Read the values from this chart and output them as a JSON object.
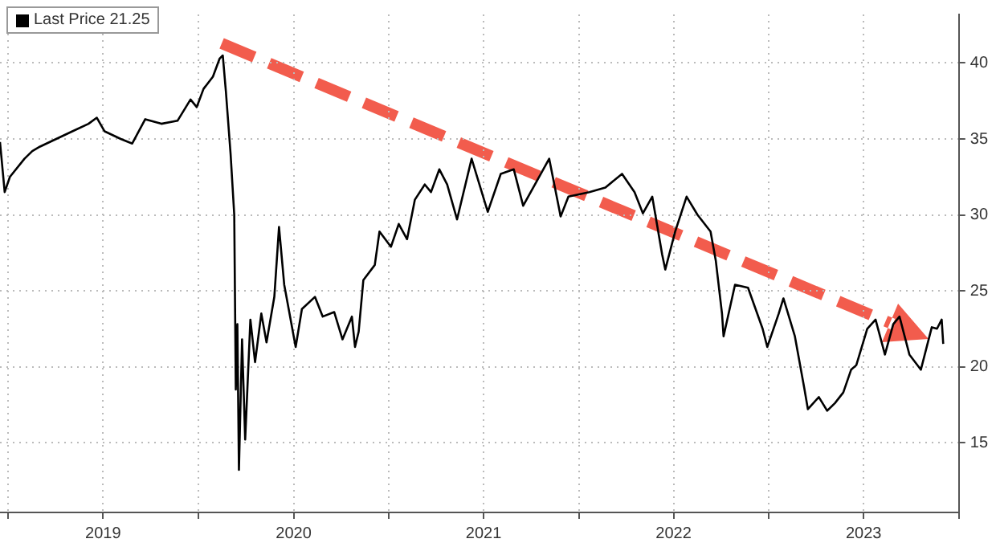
{
  "chart_data": {
    "type": "line",
    "legend": "top left",
    "grid": true,
    "marker": "none",
    "line_style": "solid",
    "xlim": [
      "2018-12-16",
      "2024-01-01"
    ],
    "ylim": [
      10.4,
      43.2
    ],
    "xticks": [
      {
        "value": "2019-01-01",
        "label": null
      },
      {
        "value": "2019-07-02",
        "label": "2019"
      },
      {
        "value": "2020-01-01",
        "label": null
      },
      {
        "value": "2020-07-02",
        "label": "2020"
      },
      {
        "value": "2021-01-01",
        "label": null
      },
      {
        "value": "2021-07-02",
        "label": "2021"
      },
      {
        "value": "2022-01-01",
        "label": null
      },
      {
        "value": "2022-07-02",
        "label": "2022"
      },
      {
        "value": "2023-01-01",
        "label": null
      },
      {
        "value": "2023-07-02",
        "label": "2023"
      },
      {
        "value": "2024-01-01",
        "label": null
      }
    ],
    "yticks": [
      15,
      20,
      25,
      30,
      35,
      40
    ],
    "series": [
      {
        "name": "Last Price 21.25",
        "color": "#000000",
        "x": [
          "2018-12-16",
          "2018-12-25",
          "2019-01-04",
          "2019-02-01",
          "2019-02-16",
          "2019-03-03",
          "2019-04-03",
          "2019-05-04",
          "2019-06-04",
          "2019-06-20",
          "2019-07-05",
          "2019-08-05",
          "2019-08-27",
          "2019-09-21",
          "2019-10-22",
          "2019-11-22",
          "2019-12-17",
          "2019-12-29",
          "2020-01-11",
          "2020-01-29",
          "2020-02-11",
          "2020-02-17",
          "2020-02-23",
          "2020-03-03",
          "2020-03-10",
          "2020-03-13",
          "2020-03-16",
          "2020-03-19",
          "2020-03-25",
          "2020-03-31",
          "2020-04-10",
          "2020-04-19",
          "2020-05-01",
          "2020-05-11",
          "2020-05-26",
          "2020-06-04",
          "2020-06-14",
          "2020-07-06",
          "2020-07-18",
          "2020-08-12",
          "2020-08-27",
          "2020-09-18",
          "2020-10-04",
          "2020-10-22",
          "2020-10-28",
          "2020-11-04",
          "2020-11-13",
          "2020-12-05",
          "2020-12-14",
          "2021-01-05",
          "2021-01-20",
          "2021-02-05",
          "2021-02-20",
          "2021-03-11",
          "2021-03-23",
          "2021-04-08",
          "2021-04-23",
          "2021-05-12",
          "2021-06-09",
          "2021-07-10",
          "2021-08-04",
          "2021-08-29",
          "2021-09-16",
          "2021-10-20",
          "2021-11-05",
          "2021-11-27",
          "2021-12-12",
          "2022-01-21",
          "2022-02-21",
          "2022-03-25",
          "2022-04-18",
          "2022-05-04",
          "2022-05-22",
          "2022-06-10",
          "2022-06-16",
          "2022-07-05",
          "2022-07-27",
          "2022-08-17",
          "2022-09-11",
          "2022-09-21",
          "2022-10-03",
          "2022-10-06",
          "2022-10-28",
          "2022-11-22",
          "2022-12-20",
          "2022-12-29",
          "2023-01-20",
          "2023-01-29",
          "2023-02-20",
          "2023-03-10",
          "2023-03-17",
          "2023-04-07",
          "2023-04-23",
          "2023-05-08",
          "2023-05-24",
          "2023-06-08",
          "2023-06-18",
          "2023-07-09",
          "2023-07-25",
          "2023-08-12",
          "2023-08-28",
          "2023-09-09",
          "2023-09-28",
          "2023-10-20",
          "2023-11-10",
          "2023-11-20",
          "2023-11-29",
          "2023-12-02"
        ],
        "values": [
          34.8,
          31.5,
          32.5,
          33.7,
          34.2,
          34.5,
          35.0,
          35.5,
          36.0,
          36.4,
          35.5,
          35.0,
          34.7,
          36.3,
          36.0,
          36.2,
          37.6,
          37.1,
          38.3,
          39.1,
          40.3,
          40.5,
          38.1,
          34.0,
          30.0,
          18.5,
          22.8,
          13.2,
          21.8,
          15.2,
          23.1,
          20.3,
          23.5,
          21.6,
          24.6,
          29.2,
          25.4,
          21.3,
          23.8,
          24.6,
          23.3,
          23.6,
          21.8,
          23.3,
          21.3,
          22.3,
          25.7,
          26.7,
          28.9,
          27.9,
          29.4,
          28.4,
          31.0,
          32.0,
          31.5,
          33.0,
          32.0,
          29.7,
          33.7,
          30.2,
          32.7,
          33.0,
          30.6,
          32.7,
          33.7,
          29.9,
          31.2,
          31.5,
          31.8,
          32.7,
          31.5,
          30.1,
          31.2,
          27.4,
          26.4,
          28.9,
          31.2,
          30.0,
          28.9,
          27.0,
          23.5,
          22.0,
          25.4,
          25.2,
          22.5,
          21.3,
          23.5,
          24.5,
          22.0,
          18.6,
          17.2,
          18.0,
          17.1,
          17.6,
          18.3,
          19.8,
          20.1,
          22.5,
          23.1,
          20.8,
          22.8,
          23.3,
          20.8,
          19.8,
          22.6,
          22.5,
          23.1,
          21.5
        ]
      }
    ]
  }
}
